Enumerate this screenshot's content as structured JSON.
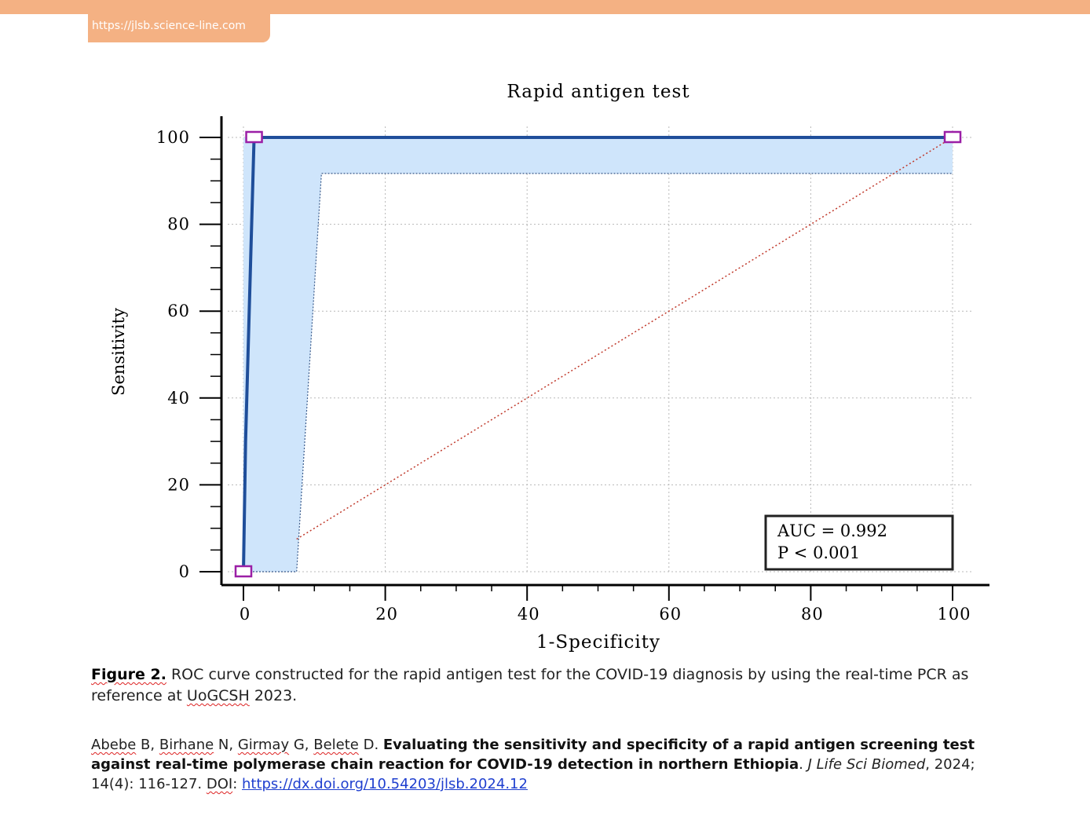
{
  "header": {
    "url": "https://jlsb.science-line.com"
  },
  "chart_data": {
    "type": "line",
    "title": "Rapid antigen test",
    "xlabel": "1-Specificity",
    "ylabel": "Sensitivity",
    "xlim": [
      0,
      100
    ],
    "ylim": [
      0,
      100
    ],
    "xticks": [
      "0",
      "20",
      "40",
      "60",
      "80",
      "100"
    ],
    "yticks": [
      "0",
      "20",
      "40",
      "60",
      "80",
      "100"
    ],
    "grid": true,
    "series": [
      {
        "role": "roc-curve",
        "color": "#1f4e9a",
        "x": [
          0,
          0.3,
          1.5,
          100
        ],
        "y": [
          0,
          30,
          100,
          100
        ]
      },
      {
        "role": "diagonal",
        "color": "#c0392b",
        "x": [
          7.5,
          100
        ],
        "y": [
          7.5,
          100
        ]
      }
    ],
    "confidence_band": {
      "color": "#cfe5fb",
      "upper": {
        "x": [
          0,
          0,
          100
        ],
        "y": [
          0,
          100,
          100
        ]
      },
      "lower": {
        "x": [
          0,
          7.5,
          11,
          100
        ],
        "y": [
          0,
          0,
          91.7,
          91.7
        ]
      }
    },
    "markers": [
      {
        "x": 0,
        "y": 0
      },
      {
        "x": 1.5,
        "y": 100
      },
      {
        "x": 100,
        "y": 100
      }
    ],
    "annotation": {
      "line1": "AUC = 0.992",
      "line2": "P < 0.001",
      "position": "bottom-right"
    }
  },
  "caption": {
    "label": "Figure 2.",
    "text_1": " ROC curve constructed for the rapid antigen test for the COVID-19 diagnosis by using the real-time PCR as reference at ",
    "org": "UoGCSH",
    "text_2": " 2023."
  },
  "citation": {
    "author_1": "Abebe",
    "author_1_initial": " B, ",
    "author_2": "Birhane",
    "author_2_initial": " N, ",
    "author_3": "Girmay",
    "author_3_initial": " G, ",
    "author_4": "Belete",
    "author_4_initial": " D. ",
    "title": "Evaluating the sensitivity and specificity of a rapid antigen screening test against real-time polymerase chain reaction for COVID-19 detection in northern Ethiopia",
    "sep": ". ",
    "journal": "J Life Sci Biomed",
    "details": ", 2024; 14(4): 116-127. ",
    "doi_label": "DOI",
    "doi_sep": ": ",
    "doi_link": "https://dx.doi.org/10.54203/jlsb.2024.12"
  }
}
